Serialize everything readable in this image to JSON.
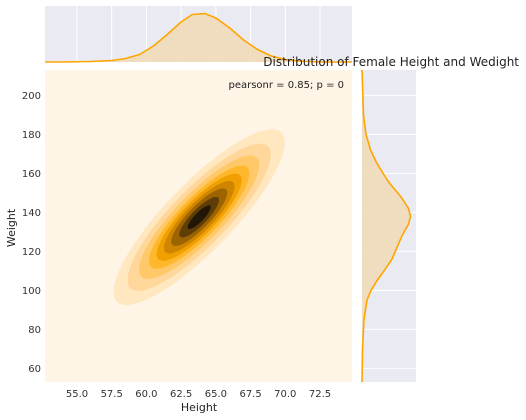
{
  "chart_data": {
    "type": "kde_jointplot",
    "title": "Distribution of Female Height and Wedight",
    "xlabel": "Height",
    "ylabel": "Weight",
    "annotation": "pearsonr = 0.85; p = 0",
    "xlim": [
      52.7,
      74.8
    ],
    "ylim": [
      53,
      213
    ],
    "xticks": [
      55.0,
      57.5,
      60.0,
      62.5,
      65.0,
      67.5,
      70.0,
      72.5
    ],
    "xtick_labels": [
      "55.0",
      "57.5",
      "60.0",
      "62.5",
      "65.0",
      "67.5",
      "70.0",
      "72.5"
    ],
    "yticks": [
      60,
      80,
      100,
      120,
      140,
      160,
      180,
      200
    ],
    "ytick_labels": [
      "60",
      "80",
      "100",
      "120",
      "140",
      "160",
      "180",
      "200"
    ],
    "joint_kde": {
      "center": [
        63.8,
        137.5
      ],
      "sd_x": 2.6,
      "sd_y": 19.0,
      "corr": 0.85,
      "levels": [
        0.06,
        0.14,
        0.25,
        0.38,
        0.5,
        0.62,
        0.74,
        0.86,
        0.95
      ]
    },
    "marginal_x": {
      "x": [
        52.7,
        54,
        56,
        57.5,
        58.5,
        59.5,
        60.5,
        61.5,
        62.5,
        63.3,
        64.2,
        65,
        66,
        67,
        68,
        69,
        70,
        71,
        72.5,
        74.8
      ],
      "density": [
        0.0,
        0.0,
        0.01,
        0.03,
        0.07,
        0.15,
        0.32,
        0.55,
        0.8,
        0.95,
        0.97,
        0.88,
        0.68,
        0.44,
        0.25,
        0.12,
        0.05,
        0.02,
        0.0,
        0.0
      ]
    },
    "marginal_y": {
      "y": [
        53,
        70,
        85,
        95,
        100,
        105,
        110,
        116,
        122,
        128,
        134,
        138,
        142,
        148,
        155,
        160,
        166,
        172,
        180,
        190,
        213
      ],
      "density": [
        0.0,
        0.01,
        0.04,
        0.1,
        0.18,
        0.3,
        0.44,
        0.6,
        0.7,
        0.8,
        0.93,
        0.97,
        0.93,
        0.78,
        0.55,
        0.42,
        0.28,
        0.17,
        0.08,
        0.03,
        0.0
      ]
    },
    "colors": {
      "joint_background": "#fff5e6",
      "marginal_background": "#eaeaf2",
      "grid": "#ffffff",
      "line": "#ffa500",
      "fill": "#f1d8b0",
      "levels": [
        "#ffe7c0",
        "#ffd79a",
        "#ffc868",
        "#ffb72c",
        "#f0a000",
        "#cf8500",
        "#9b6400",
        "#5e3d06",
        "#221606"
      ]
    }
  }
}
